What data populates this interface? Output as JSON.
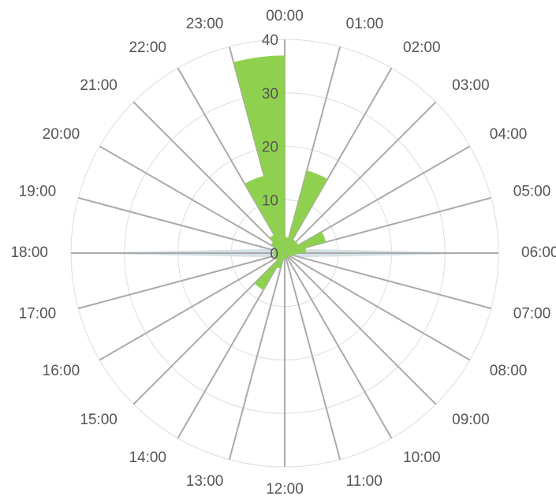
{
  "chart_data": {
    "type": "polar-bar",
    "categories": [
      "00:00",
      "01:00",
      "02:00",
      "03:00",
      "04:00",
      "05:00",
      "06:00",
      "07:00",
      "08:00",
      "09:00",
      "10:00",
      "11:00",
      "12:00",
      "13:00",
      "14:00",
      "15:00",
      "16:00",
      "17:00",
      "18:00",
      "19:00",
      "20:00",
      "21:00",
      "22:00",
      "23:00"
    ],
    "series": [
      {
        "type": "area",
        "color": "#d4e1e7",
        "values": [
          1,
          1,
          1,
          1,
          1,
          3,
          40,
          3,
          1,
          1,
          1,
          1,
          1,
          1,
          1,
          1,
          1,
          3,
          40,
          3,
          1,
          1,
          1,
          1
        ]
      },
      {
        "type": "bar",
        "color": "#8fd14f",
        "values": [
          3,
          16,
          3,
          3,
          8,
          4,
          2,
          1,
          1,
          1,
          1,
          1,
          1,
          3,
          8,
          2,
          2,
          2,
          2,
          2,
          3,
          4,
          15,
          37
        ]
      }
    ],
    "ylim": [
      0,
      40
    ],
    "yticks": [
      0,
      10,
      20,
      30,
      40
    ],
    "grid": true
  }
}
